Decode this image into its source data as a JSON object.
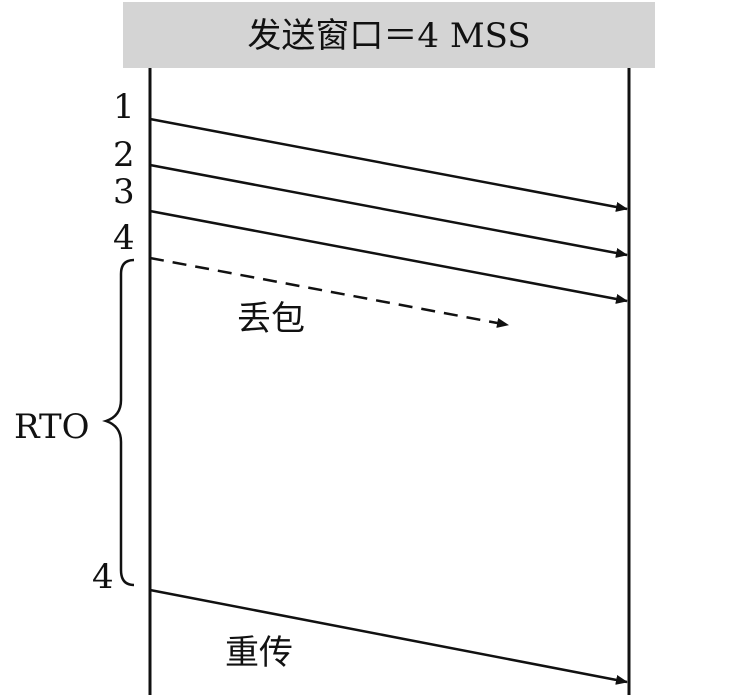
{
  "header": {
    "title": "发送窗口＝4 MSS"
  },
  "segments": [
    {
      "label": "1",
      "status": "delivered"
    },
    {
      "label": "2",
      "status": "delivered"
    },
    {
      "label": "3",
      "status": "delivered"
    },
    {
      "label": "4",
      "status": "lost"
    }
  ],
  "lost_label": "丢包",
  "rto_label": "RTO",
  "retransmit": {
    "label": "4",
    "caption": "重传"
  },
  "colors": {
    "header_bg": "#d4d4d4",
    "line": "#111111"
  }
}
